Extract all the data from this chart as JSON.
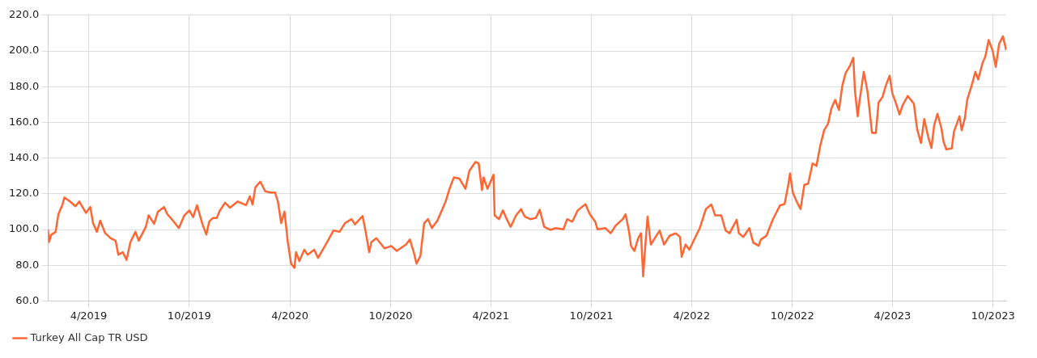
{
  "chart_data": {
    "type": "line",
    "x": [
      "2019-01-31",
      "2019-02-02",
      "2019-02-06",
      "2019-02-14",
      "2019-02-19",
      "2019-02-26",
      "2019-03-02",
      "2019-03-12",
      "2019-03-22",
      "2019-03-29",
      "2019-04-10",
      "2019-04-18",
      "2019-04-23",
      "2019-04-30",
      "2019-05-06",
      "2019-05-15",
      "2019-05-25",
      "2019-06-03",
      "2019-06-08",
      "2019-06-16",
      "2019-06-23",
      "2019-06-30",
      "2019-07-09",
      "2019-07-15",
      "2019-07-28",
      "2019-08-02",
      "2019-08-12",
      "2019-08-19",
      "2019-08-30",
      "2019-09-05",
      "2019-09-17",
      "2019-09-26",
      "2019-10-06",
      "2019-10-15",
      "2019-10-22",
      "2019-10-29",
      "2019-11-08",
      "2019-11-15",
      "2019-11-20",
      "2019-11-27",
      "2019-12-04",
      "2019-12-09",
      "2019-12-19",
      "2019-12-28",
      "2020-01-11",
      "2020-01-26",
      "2020-02-02",
      "2020-02-07",
      "2020-02-12",
      "2020-02-21",
      "2020-03-01",
      "2020-03-11",
      "2020-03-19",
      "2020-03-24",
      "2020-03-30",
      "2020-04-05",
      "2020-04-11",
      "2020-04-17",
      "2020-04-23",
      "2020-04-26",
      "2020-05-02",
      "2020-05-11",
      "2020-05-17",
      "2020-05-29",
      "2020-06-05",
      "2020-06-19",
      "2020-07-03",
      "2020-07-14",
      "2020-07-24",
      "2020-08-05",
      "2020-08-11",
      "2020-08-25",
      "2020-08-30",
      "2020-09-06",
      "2020-09-10",
      "2020-09-19",
      "2020-10-04",
      "2020-10-16",
      "2020-10-26",
      "2020-11-12",
      "2020-11-19",
      "2020-11-26",
      "2020-12-01",
      "2020-12-08",
      "2020-12-15",
      "2020-12-22",
      "2020-12-29",
      "2021-01-08",
      "2021-01-23",
      "2021-01-30",
      "2021-02-07",
      "2021-02-17",
      "2021-02-28",
      "2021-03-07",
      "2021-03-18",
      "2021-03-24",
      "2021-03-30",
      "2021-04-02",
      "2021-04-09",
      "2021-04-20",
      "2021-04-22",
      "2021-04-30",
      "2021-05-07",
      "2021-05-14",
      "2021-05-21",
      "2021-05-31",
      "2021-06-09",
      "2021-06-16",
      "2021-06-26",
      "2021-07-06",
      "2021-07-13",
      "2021-07-21",
      "2021-08-01",
      "2021-08-11",
      "2021-08-25",
      "2021-09-01",
      "2021-09-10",
      "2021-09-20",
      "2021-10-04",
      "2021-10-12",
      "2021-10-22",
      "2021-10-26",
      "2021-11-09",
      "2021-11-19",
      "2021-11-28",
      "2021-12-11",
      "2021-12-16",
      "2021-12-22",
      "2021-12-26",
      "2022-01-01",
      "2022-01-08",
      "2022-01-13",
      "2022-01-17",
      "2022-01-20",
      "2022-01-25",
      "2022-01-31",
      "2022-02-07",
      "2022-02-16",
      "2022-02-24",
      "2022-03-06",
      "2022-03-17",
      "2022-03-25",
      "2022-03-28",
      "2022-04-04",
      "2022-04-11",
      "2022-04-23",
      "2022-04-30",
      "2022-05-11",
      "2022-05-21",
      "2022-05-28",
      "2022-06-08",
      "2022-06-16",
      "2022-06-23",
      "2022-07-06",
      "2022-07-10",
      "2022-07-18",
      "2022-07-29",
      "2022-08-05",
      "2022-08-15",
      "2022-08-19",
      "2022-08-29",
      "2022-09-10",
      "2022-09-23",
      "2022-10-01",
      "2022-10-07",
      "2022-10-11",
      "2022-10-16",
      "2022-10-23",
      "2022-10-30",
      "2022-11-06",
      "2022-11-13",
      "2022-11-21",
      "2022-11-28",
      "2022-12-05",
      "2022-12-12",
      "2022-12-19",
      "2022-12-25",
      "2023-01-01",
      "2023-01-08",
      "2023-01-14",
      "2023-01-20",
      "2023-01-27",
      "2023-02-03",
      "2023-02-06",
      "2023-02-11",
      "2023-02-14",
      "2023-02-22",
      "2023-03-01",
      "2023-03-06",
      "2023-03-09",
      "2023-03-16",
      "2023-03-21",
      "2023-03-28",
      "2023-04-03",
      "2023-04-10",
      "2023-04-15",
      "2023-04-21",
      "2023-04-28",
      "2023-05-04",
      "2023-05-13",
      "2023-05-24",
      "2023-05-30",
      "2023-06-06",
      "2023-06-12",
      "2023-06-19",
      "2023-06-25",
      "2023-06-30",
      "2023-07-06",
      "2023-07-13",
      "2023-07-17",
      "2023-07-22",
      "2023-08-01",
      "2023-08-05",
      "2023-08-15",
      "2023-08-19",
      "2023-08-25",
      "2023-08-29",
      "2023-09-06",
      "2023-09-13",
      "2023-09-18",
      "2023-09-26",
      "2023-10-01",
      "2023-10-07",
      "2023-10-14",
      "2023-10-20",
      "2023-10-26",
      "2023-11-02",
      "2023-11-08"
    ],
    "series": [
      {
        "name": "Turkey All Cap TR USD",
        "color": "#ff6633",
        "values": [
          100,
          93,
          97,
          98.7,
          108.6,
          113.6,
          117.9,
          115.7,
          113,
          115.7,
          109.3,
          112.6,
          103.6,
          98.7,
          105,
          98,
          95.1,
          93.7,
          85.9,
          87.3,
          83,
          93,
          98.7,
          93.7,
          101.5,
          107.9,
          103.2,
          110,
          112.6,
          108.6,
          104.3,
          100.8,
          107.9,
          110.7,
          106.9,
          113.6,
          102.9,
          97.2,
          104.3,
          106.5,
          106.5,
          110.3,
          115,
          112.2,
          115.7,
          113.6,
          118.6,
          114,
          123.6,
          126.8,
          121.4,
          120.7,
          120.7,
          115.7,
          103.6,
          110,
          93,
          80.9,
          78.5,
          87.3,
          82.3,
          88.7,
          85.9,
          88.7,
          84.1,
          91.6,
          99.4,
          98.7,
          103.6,
          105.8,
          102.9,
          107.5,
          99.8,
          87.3,
          93,
          95.1,
          89.4,
          90.8,
          88,
          91.6,
          94.4,
          87.3,
          80.9,
          85.1,
          103.6,
          105.8,
          100.8,
          105,
          115.7,
          122.8,
          129.2,
          128.5,
          122.8,
          132.8,
          137.8,
          137,
          122.1,
          129.2,
          122.8,
          130.7,
          107.9,
          105.8,
          110.7,
          105.8,
          101.5,
          107.9,
          111.4,
          107.2,
          105.8,
          106.5,
          111.1,
          101.5,
          99.8,
          100.8,
          100.1,
          105.8,
          104.3,
          110.7,
          114.2,
          108.6,
          104.3,
          100.1,
          100.8,
          97.9,
          102.2,
          105.8,
          108.6,
          99.4,
          90.8,
          88,
          95.1,
          97.9,
          73.8,
          87.3,
          107.2,
          91.6,
          95.1,
          99.4,
          91.6,
          96.5,
          97.9,
          95.8,
          84.7,
          91.6,
          88.7,
          96.5,
          100.8,
          111.4,
          114,
          107.9,
          107.9,
          99.4,
          97.9,
          105.4,
          97.9,
          95.8,
          100.8,
          92.7,
          90.9,
          94.4,
          96.5,
          105.8,
          113.6,
          114.2,
          123.6,
          131.4,
          120.7,
          115.7,
          111.4,
          125,
          125.7,
          137,
          135.6,
          147,
          155.6,
          159.1,
          167.6,
          172.6,
          166.9,
          180.5,
          187.6,
          191.1,
          196.1,
          177.6,
          163.4,
          171.2,
          188.3,
          176.9,
          162.7,
          154.1,
          154.1,
          171.2,
          174.1,
          180.5,
          186.1,
          176.2,
          171.2,
          164.4,
          169.8,
          174.8,
          170.5,
          156.3,
          148.4,
          161.9,
          152,
          145.6,
          158.4,
          164.8,
          157,
          149.2,
          144.9,
          145.4,
          154.8,
          163.4,
          155.6,
          162.7,
          172.6,
          180.5,
          188.3,
          184,
          193.3,
          196.8,
          206.1,
          200.4,
          191.1,
          203.9,
          208.2,
          200.4
        ]
      }
    ],
    "xlim": [
      "2019-01-31",
      "2023-11-08"
    ],
    "xticks": [
      {
        "value": "2019-04-15",
        "label": "4/2019"
      },
      {
        "value": "2019-10-15",
        "label": "10/2019"
      },
      {
        "value": "2020-04-15",
        "label": "4/2020"
      },
      {
        "value": "2020-10-15",
        "label": "10/2020"
      },
      {
        "value": "2021-04-15",
        "label": "4/2021"
      },
      {
        "value": "2021-10-15",
        "label": "10/2021"
      },
      {
        "value": "2022-04-15",
        "label": "4/2022"
      },
      {
        "value": "2022-10-15",
        "label": "10/2022"
      },
      {
        "value": "2023-04-15",
        "label": "4/2023"
      },
      {
        "value": "2023-10-15",
        "label": "10/2023"
      }
    ],
    "ylim": [
      60,
      220
    ],
    "yticks": [
      {
        "value": 60,
        "label": "60.0"
      },
      {
        "value": 80,
        "label": "80.0"
      },
      {
        "value": 100,
        "label": "100.0"
      },
      {
        "value": 120,
        "label": "120.0"
      },
      {
        "value": 140,
        "label": "140.0"
      },
      {
        "value": 160,
        "label": "160.0"
      },
      {
        "value": 180,
        "label": "180.0"
      },
      {
        "value": 200,
        "label": "200.0"
      },
      {
        "value": 220,
        "label": "220.0"
      }
    ],
    "grid": true,
    "legend": "bottom left"
  }
}
